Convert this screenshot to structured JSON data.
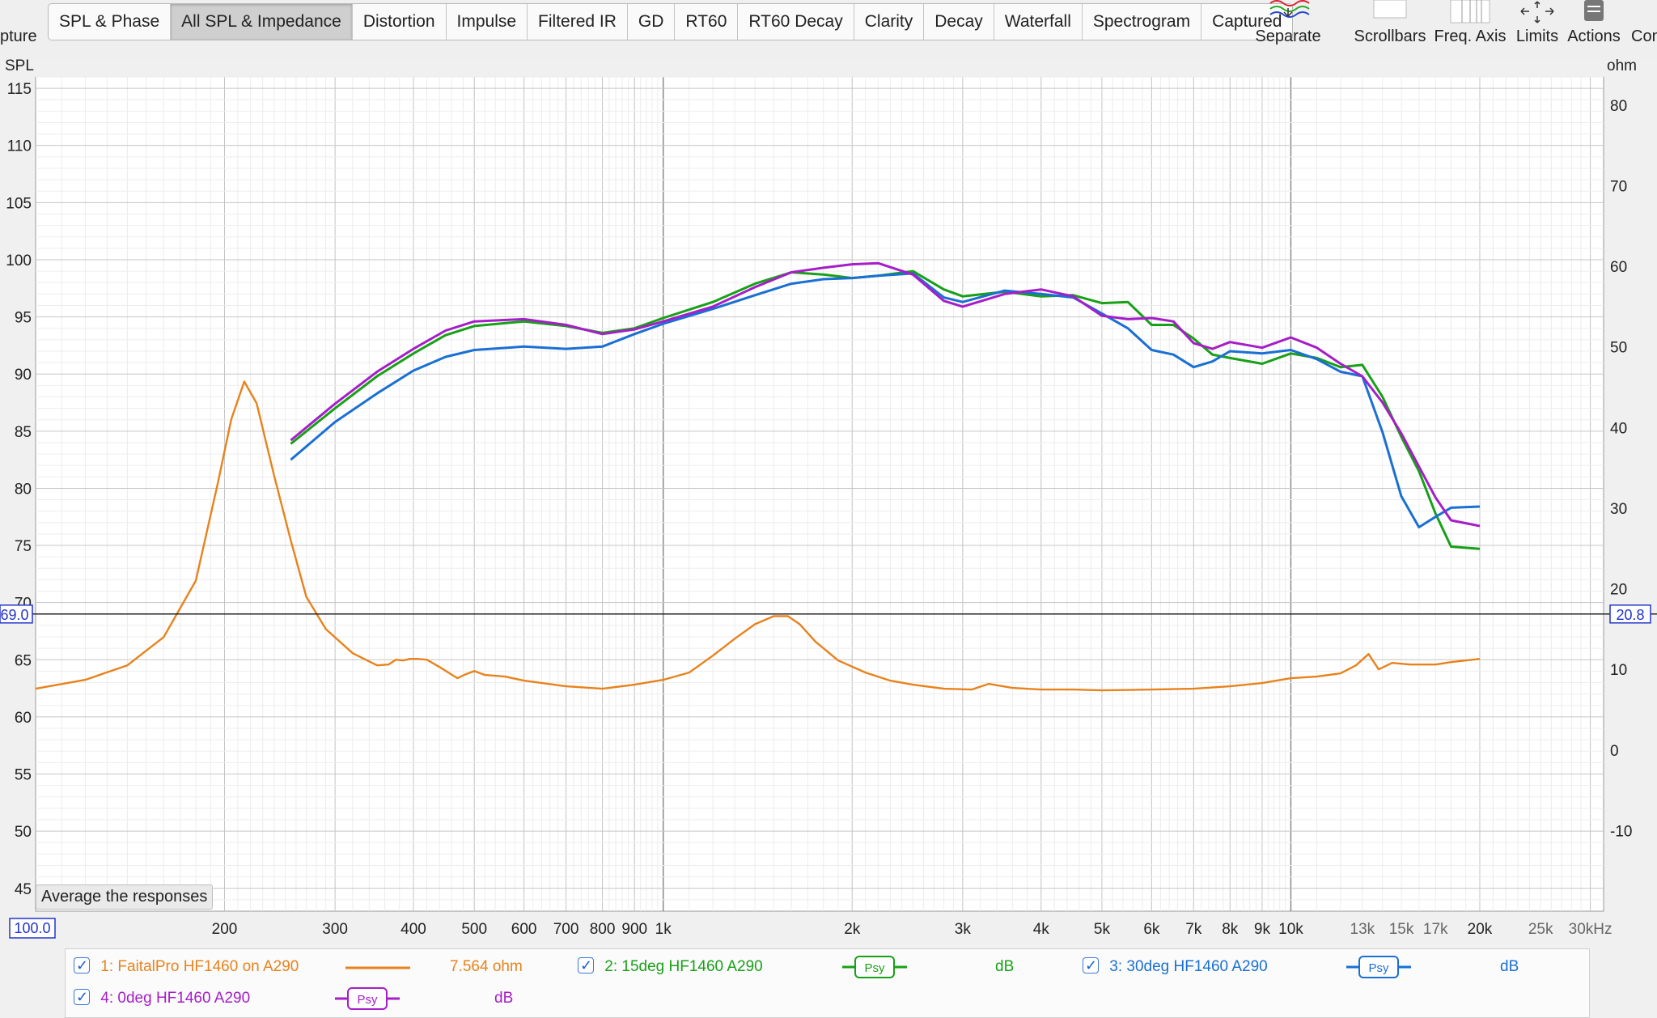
{
  "toolbar": {
    "capture_partial": "pture",
    "tabs": [
      "SPL & Phase",
      "All SPL & Impedance",
      "Distortion",
      "Impulse",
      "Filtered IR",
      "GD",
      "RT60",
      "RT60 Decay",
      "Clarity",
      "Decay",
      "Waterfall",
      "Spectrogram",
      "Captured"
    ],
    "active_tab": "All SPL & Impedance",
    "tools": {
      "separate": "Separate",
      "scrollbars": "Scrollbars",
      "freq_axis": "Freq. Axis",
      "limits": "Limits",
      "actions": "Actions",
      "controls_partial": "Con"
    }
  },
  "avg_button": "Average the responses",
  "chart_data": {
    "type": "line",
    "left_axis": {
      "label": "SPL",
      "ylim": [
        43,
        116
      ],
      "ticks": [
        45,
        50,
        55,
        60,
        65,
        70,
        75,
        80,
        85,
        90,
        95,
        100,
        105,
        110,
        115
      ]
    },
    "right_axis": {
      "label": "ohm",
      "ylim": [
        -20,
        83.5
      ],
      "ticks": [
        -10,
        0,
        10,
        20,
        30,
        40,
        50,
        60,
        70,
        80
      ]
    },
    "x_axis": {
      "scale": "log",
      "xlim": [
        100,
        31500
      ],
      "tick_values": [
        200,
        300,
        400,
        500,
        600,
        700,
        800,
        900,
        1000,
        2000,
        3000,
        4000,
        5000,
        6000,
        7000,
        8000,
        9000,
        10000,
        13000,
        15000,
        17000,
        20000,
        25000,
        30000
      ],
      "tick_labels": [
        "200",
        "300",
        "400",
        "500",
        "600",
        "700",
        "800",
        "900",
        "1k",
        "2k",
        "3k",
        "4k",
        "5k",
        "6k",
        "7k",
        "8k",
        "9k",
        "10k",
        "13k",
        "15k",
        "17k",
        "20k",
        "25k",
        "30kHz"
      ]
    },
    "cursor": {
      "freq_readout": "100.0",
      "left_readout": "69.0",
      "right_readout": "20.8"
    },
    "series": [
      {
        "name": "1: FaitalPro HF1460 on A290",
        "axis": "right",
        "color": "#e8821c",
        "value_text": "7.564 ohm",
        "points": [
          [
            100,
            7.6
          ],
          [
            120,
            8.7
          ],
          [
            140,
            10.5
          ],
          [
            160,
            14
          ],
          [
            180,
            21
          ],
          [
            195,
            33
          ],
          [
            205,
            41
          ],
          [
            215,
            45.7
          ],
          [
            225,
            43
          ],
          [
            240,
            34
          ],
          [
            255,
            26
          ],
          [
            270,
            19
          ],
          [
            290,
            15
          ],
          [
            320,
            12
          ],
          [
            350,
            10.5
          ],
          [
            365,
            10.6
          ],
          [
            375,
            11.2
          ],
          [
            385,
            11.1
          ],
          [
            395,
            11.3
          ],
          [
            405,
            11.3
          ],
          [
            420,
            11.2
          ],
          [
            440,
            10.3
          ],
          [
            470,
            8.9
          ],
          [
            485,
            9.4
          ],
          [
            500,
            9.8
          ],
          [
            520,
            9.3
          ],
          [
            560,
            9.1
          ],
          [
            600,
            8.6
          ],
          [
            700,
            7.9
          ],
          [
            800,
            7.6
          ],
          [
            900,
            8.1
          ],
          [
            1000,
            8.7
          ],
          [
            1100,
            9.6
          ],
          [
            1200,
            11.7
          ],
          [
            1300,
            13.8
          ],
          [
            1400,
            15.6
          ],
          [
            1500,
            16.6
          ],
          [
            1580,
            16.6
          ],
          [
            1650,
            15.6
          ],
          [
            1750,
            13.4
          ],
          [
            1900,
            11.1
          ],
          [
            2100,
            9.6
          ],
          [
            2300,
            8.6
          ],
          [
            2500,
            8.1
          ],
          [
            2800,
            7.6
          ],
          [
            3100,
            7.5
          ],
          [
            3300,
            8.2
          ],
          [
            3600,
            7.7
          ],
          [
            4000,
            7.5
          ],
          [
            4500,
            7.5
          ],
          [
            5000,
            7.4
          ],
          [
            6000,
            7.5
          ],
          [
            7000,
            7.6
          ],
          [
            8000,
            7.9
          ],
          [
            9000,
            8.3
          ],
          [
            10000,
            8.9
          ],
          [
            11000,
            9.1
          ],
          [
            12000,
            9.5
          ],
          [
            12700,
            10.5
          ],
          [
            13300,
            11.9
          ],
          [
            13800,
            10
          ],
          [
            14500,
            10.8
          ],
          [
            15500,
            10.6
          ],
          [
            17000,
            10.6
          ],
          [
            18000,
            10.9
          ],
          [
            20000,
            11.3
          ]
        ]
      },
      {
        "name": "2: 15deg HF1460 A290",
        "axis": "left",
        "color": "#18a018",
        "badge": "Psy",
        "unit": "dB",
        "points": [
          [
            255,
            83.9
          ],
          [
            300,
            87
          ],
          [
            350,
            89.8
          ],
          [
            400,
            91.8
          ],
          [
            450,
            93.4
          ],
          [
            500,
            94.2
          ],
          [
            600,
            94.6
          ],
          [
            700,
            94.2
          ],
          [
            800,
            93.6
          ],
          [
            900,
            94
          ],
          [
            1000,
            94.9
          ],
          [
            1200,
            96.3
          ],
          [
            1400,
            97.9
          ],
          [
            1600,
            98.9
          ],
          [
            1800,
            98.7
          ],
          [
            2000,
            98.4
          ],
          [
            2200,
            98.6
          ],
          [
            2500,
            99
          ],
          [
            2800,
            97.4
          ],
          [
            3000,
            96.8
          ],
          [
            3500,
            97.2
          ],
          [
            4000,
            96.8
          ],
          [
            4500,
            96.9
          ],
          [
            5000,
            96.2
          ],
          [
            5500,
            96.3
          ],
          [
            6000,
            94.3
          ],
          [
            6500,
            94.3
          ],
          [
            7000,
            93.1
          ],
          [
            7500,
            91.7
          ],
          [
            8000,
            91.4
          ],
          [
            9000,
            90.9
          ],
          [
            10000,
            91.8
          ],
          [
            11000,
            91.4
          ],
          [
            12000,
            90.6
          ],
          [
            13000,
            90.8
          ],
          [
            14000,
            88
          ],
          [
            15000,
            84.5
          ],
          [
            16000,
            81.5
          ],
          [
            17000,
            77.8
          ],
          [
            18000,
            74.9
          ],
          [
            20000,
            74.7
          ]
        ]
      },
      {
        "name": "3: 30deg HF1460 A290",
        "axis": "left",
        "color": "#1a6fd4",
        "badge": "Psy",
        "unit": "dB",
        "points": [
          [
            255,
            82.5
          ],
          [
            300,
            85.8
          ],
          [
            350,
            88.3
          ],
          [
            400,
            90.3
          ],
          [
            450,
            91.5
          ],
          [
            500,
            92.1
          ],
          [
            600,
            92.4
          ],
          [
            700,
            92.2
          ],
          [
            800,
            92.4
          ],
          [
            900,
            93.5
          ],
          [
            1000,
            94.4
          ],
          [
            1200,
            95.7
          ],
          [
            1400,
            96.9
          ],
          [
            1600,
            97.9
          ],
          [
            1800,
            98.3
          ],
          [
            2000,
            98.4
          ],
          [
            2200,
            98.6
          ],
          [
            2500,
            98.8
          ],
          [
            2800,
            96.7
          ],
          [
            3000,
            96.3
          ],
          [
            3500,
            97.3
          ],
          [
            4000,
            97
          ],
          [
            4500,
            96.7
          ],
          [
            5000,
            95.3
          ],
          [
            5500,
            94
          ],
          [
            6000,
            92.1
          ],
          [
            6500,
            91.7
          ],
          [
            7000,
            90.6
          ],
          [
            7500,
            91.1
          ],
          [
            8000,
            92
          ],
          [
            9000,
            91.8
          ],
          [
            10000,
            92.1
          ],
          [
            11000,
            91.3
          ],
          [
            12000,
            90.2
          ],
          [
            13000,
            89.8
          ],
          [
            14000,
            84.9
          ],
          [
            15000,
            79.3
          ],
          [
            16000,
            76.6
          ],
          [
            17000,
            77.5
          ],
          [
            18000,
            78.3
          ],
          [
            20000,
            78.4
          ]
        ]
      },
      {
        "name": "4: 0deg HF1460 A290",
        "axis": "left",
        "color": "#a51ec8",
        "badge": "Psy",
        "unit": "dB",
        "points": [
          [
            255,
            84.2
          ],
          [
            300,
            87.4
          ],
          [
            350,
            90.2
          ],
          [
            400,
            92.2
          ],
          [
            450,
            93.8
          ],
          [
            500,
            94.6
          ],
          [
            600,
            94.8
          ],
          [
            700,
            94.3
          ],
          [
            800,
            93.5
          ],
          [
            900,
            93.9
          ],
          [
            1000,
            94.6
          ],
          [
            1200,
            95.9
          ],
          [
            1400,
            97.6
          ],
          [
            1600,
            98.9
          ],
          [
            1800,
            99.3
          ],
          [
            2000,
            99.6
          ],
          [
            2200,
            99.7
          ],
          [
            2500,
            98.7
          ],
          [
            2800,
            96.4
          ],
          [
            3000,
            95.9
          ],
          [
            3500,
            97
          ],
          [
            4000,
            97.4
          ],
          [
            4500,
            96.8
          ],
          [
            5000,
            95.1
          ],
          [
            5500,
            94.8
          ],
          [
            6000,
            94.9
          ],
          [
            6500,
            94.6
          ],
          [
            7000,
            92.7
          ],
          [
            7500,
            92.2
          ],
          [
            8000,
            92.8
          ],
          [
            9000,
            92.3
          ],
          [
            10000,
            93.2
          ],
          [
            11000,
            92.3
          ],
          [
            12000,
            90.9
          ],
          [
            13000,
            89.8
          ],
          [
            14000,
            87.5
          ],
          [
            15000,
            84.8
          ],
          [
            16000,
            81.9
          ],
          [
            17000,
            79.2
          ],
          [
            18000,
            77.2
          ],
          [
            20000,
            76.7
          ]
        ]
      }
    ]
  }
}
